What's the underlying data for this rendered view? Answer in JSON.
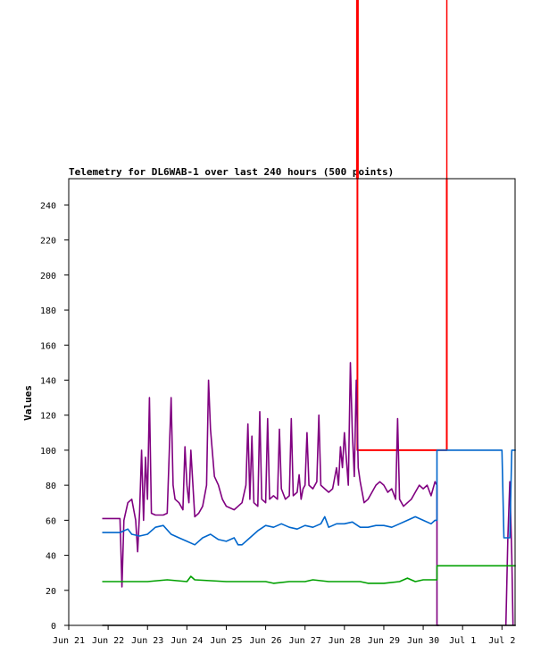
{
  "chart_data": {
    "type": "line",
    "title": "Telemetry for DL6WAB-1 over last 240 hours (500 points)",
    "ylabel": "Values",
    "xlabel": "",
    "ylim": [
      0,
      255
    ],
    "xlim": [
      "Jun 21",
      "Jul 2"
    ],
    "x_tick_labels": [
      "Jun 21",
      "Jun 22",
      "Jun 23",
      "Jun 24",
      "Jun 25",
      "Jun 26",
      "Jun 27",
      "Jun 28",
      "Jun 29",
      "Jun 30",
      "Jul 1",
      "Jul 2"
    ],
    "y_ticks": [
      0,
      20,
      40,
      60,
      80,
      100,
      120,
      140,
      160,
      180,
      200,
      220,
      240
    ],
    "grid": false,
    "legend": "none",
    "x_unit": "days since Jun 21",
    "series": [
      {
        "color": "#ff0000",
        "values": [
          [
            7.33,
            255
          ],
          [
            7.33,
            100
          ],
          [
            9.6,
            100
          ],
          [
            9.6,
            255
          ]
        ]
      },
      {
        "color": "#800080",
        "values": [
          [
            0.85,
            61
          ],
          [
            1.3,
            61
          ],
          [
            1.32,
            48
          ],
          [
            1.35,
            22
          ],
          [
            1.4,
            60
          ],
          [
            1.5,
            70
          ],
          [
            1.6,
            72
          ],
          [
            1.7,
            60
          ],
          [
            1.75,
            42
          ],
          [
            1.8,
            65
          ],
          [
            1.85,
            100
          ],
          [
            1.9,
            60
          ],
          [
            1.95,
            96
          ],
          [
            2.0,
            72
          ],
          [
            2.05,
            130
          ],
          [
            2.1,
            64
          ],
          [
            2.2,
            63
          ],
          [
            2.4,
            63
          ],
          [
            2.5,
            64
          ],
          [
            2.6,
            130
          ],
          [
            2.65,
            80
          ],
          [
            2.7,
            72
          ],
          [
            2.8,
            70
          ],
          [
            2.9,
            66
          ],
          [
            2.95,
            102
          ],
          [
            3.0,
            80
          ],
          [
            3.05,
            70
          ],
          [
            3.1,
            100
          ],
          [
            3.2,
            62
          ],
          [
            3.3,
            64
          ],
          [
            3.4,
            68
          ],
          [
            3.5,
            80
          ],
          [
            3.55,
            140
          ],
          [
            3.6,
            112
          ],
          [
            3.7,
            85
          ],
          [
            3.8,
            80
          ],
          [
            3.9,
            72
          ],
          [
            4.0,
            68
          ],
          [
            4.2,
            66
          ],
          [
            4.3,
            68
          ],
          [
            4.4,
            70
          ],
          [
            4.5,
            80
          ],
          [
            4.55,
            115
          ],
          [
            4.6,
            72
          ],
          [
            4.65,
            108
          ],
          [
            4.7,
            70
          ],
          [
            4.8,
            68
          ],
          [
            4.85,
            122
          ],
          [
            4.9,
            72
          ],
          [
            5.0,
            70
          ],
          [
            5.05,
            118
          ],
          [
            5.1,
            72
          ],
          [
            5.2,
            74
          ],
          [
            5.3,
            72
          ],
          [
            5.35,
            112
          ],
          [
            5.4,
            78
          ],
          [
            5.5,
            72
          ],
          [
            5.6,
            74
          ],
          [
            5.65,
            118
          ],
          [
            5.7,
            74
          ],
          [
            5.8,
            76
          ],
          [
            5.85,
            86
          ],
          [
            5.9,
            72
          ],
          [
            5.95,
            78
          ],
          [
            6.0,
            80
          ],
          [
            6.05,
            110
          ],
          [
            6.1,
            80
          ],
          [
            6.2,
            78
          ],
          [
            6.3,
            82
          ],
          [
            6.35,
            120
          ],
          [
            6.4,
            80
          ],
          [
            6.5,
            78
          ],
          [
            6.6,
            76
          ],
          [
            6.7,
            78
          ],
          [
            6.8,
            90
          ],
          [
            6.85,
            80
          ],
          [
            6.9,
            102
          ],
          [
            6.95,
            90
          ],
          [
            7.0,
            110
          ],
          [
            7.1,
            80
          ],
          [
            7.15,
            150
          ],
          [
            7.2,
            110
          ],
          [
            7.25,
            85
          ],
          [
            7.3,
            140
          ],
          [
            7.35,
            90
          ],
          [
            7.4,
            82
          ],
          [
            7.5,
            70
          ],
          [
            7.6,
            72
          ],
          [
            7.7,
            76
          ],
          [
            7.8,
            80
          ],
          [
            7.9,
            82
          ],
          [
            8.0,
            80
          ],
          [
            8.1,
            76
          ],
          [
            8.2,
            78
          ],
          [
            8.3,
            72
          ],
          [
            8.35,
            118
          ],
          [
            8.4,
            72
          ],
          [
            8.5,
            68
          ],
          [
            8.6,
            70
          ],
          [
            8.7,
            72
          ],
          [
            8.8,
            76
          ],
          [
            8.9,
            80
          ],
          [
            9.0,
            78
          ],
          [
            9.1,
            80
          ],
          [
            9.2,
            74
          ],
          [
            9.3,
            82
          ],
          [
            9.35,
            80
          ],
          [
            9.35,
            0
          ],
          [
            9.4,
            0
          ]
        ]
      },
      {
        "color": "#800080",
        "values": [
          [
            11.1,
            0
          ],
          [
            11.15,
            50
          ],
          [
            11.2,
            82
          ],
          [
            11.25,
            40
          ],
          [
            11.28,
            0
          ]
        ]
      },
      {
        "color": "#0066cc",
        "values": [
          [
            0.85,
            53
          ],
          [
            1.3,
            53
          ],
          [
            1.4,
            54
          ],
          [
            1.5,
            55
          ],
          [
            1.6,
            52
          ],
          [
            1.8,
            51
          ],
          [
            2.0,
            52
          ],
          [
            2.2,
            56
          ],
          [
            2.4,
            57
          ],
          [
            2.6,
            52
          ],
          [
            2.8,
            50
          ],
          [
            3.0,
            48
          ],
          [
            3.2,
            46
          ],
          [
            3.4,
            50
          ],
          [
            3.6,
            52
          ],
          [
            3.8,
            49
          ],
          [
            4.0,
            48
          ],
          [
            4.2,
            50
          ],
          [
            4.3,
            46
          ],
          [
            4.4,
            46
          ],
          [
            4.6,
            50
          ],
          [
            4.8,
            54
          ],
          [
            5.0,
            57
          ],
          [
            5.2,
            56
          ],
          [
            5.4,
            58
          ],
          [
            5.6,
            56
          ],
          [
            5.8,
            55
          ],
          [
            6.0,
            57
          ],
          [
            6.2,
            56
          ],
          [
            6.4,
            58
          ],
          [
            6.5,
            62
          ],
          [
            6.6,
            56
          ],
          [
            6.8,
            58
          ],
          [
            7.0,
            58
          ],
          [
            7.2,
            59
          ],
          [
            7.4,
            56
          ],
          [
            7.6,
            56
          ],
          [
            7.8,
            57
          ],
          [
            8.0,
            57
          ],
          [
            8.2,
            56
          ],
          [
            8.4,
            58
          ],
          [
            8.6,
            60
          ],
          [
            8.8,
            62
          ],
          [
            9.0,
            60
          ],
          [
            9.2,
            58
          ],
          [
            9.3,
            60
          ],
          [
            9.35,
            60
          ],
          [
            9.35,
            100
          ],
          [
            11.0,
            100
          ],
          [
            11.05,
            50
          ],
          [
            11.2,
            50
          ],
          [
            11.25,
            100
          ],
          [
            11.35,
            100
          ]
        ]
      },
      {
        "color": "#00a000",
        "values": [
          [
            0.85,
            25
          ],
          [
            1.5,
            25
          ],
          [
            2.0,
            25
          ],
          [
            2.5,
            26
          ],
          [
            3.0,
            25
          ],
          [
            3.1,
            28
          ],
          [
            3.2,
            26
          ],
          [
            4.0,
            25
          ],
          [
            4.5,
            25
          ],
          [
            5.0,
            25
          ],
          [
            5.2,
            24
          ],
          [
            5.6,
            25
          ],
          [
            6.0,
            25
          ],
          [
            6.2,
            26
          ],
          [
            6.6,
            25
          ],
          [
            7.0,
            25
          ],
          [
            7.4,
            25
          ],
          [
            7.6,
            24
          ],
          [
            8.0,
            24
          ],
          [
            8.4,
            25
          ],
          [
            8.6,
            27
          ],
          [
            8.8,
            25
          ],
          [
            9.0,
            26
          ],
          [
            9.35,
            26
          ],
          [
            9.35,
            34
          ],
          [
            11.35,
            34
          ]
        ]
      },
      {
        "color": "#000000",
        "values": [
          [
            0.85,
            0
          ],
          [
            11.35,
            0
          ]
        ]
      }
    ]
  }
}
